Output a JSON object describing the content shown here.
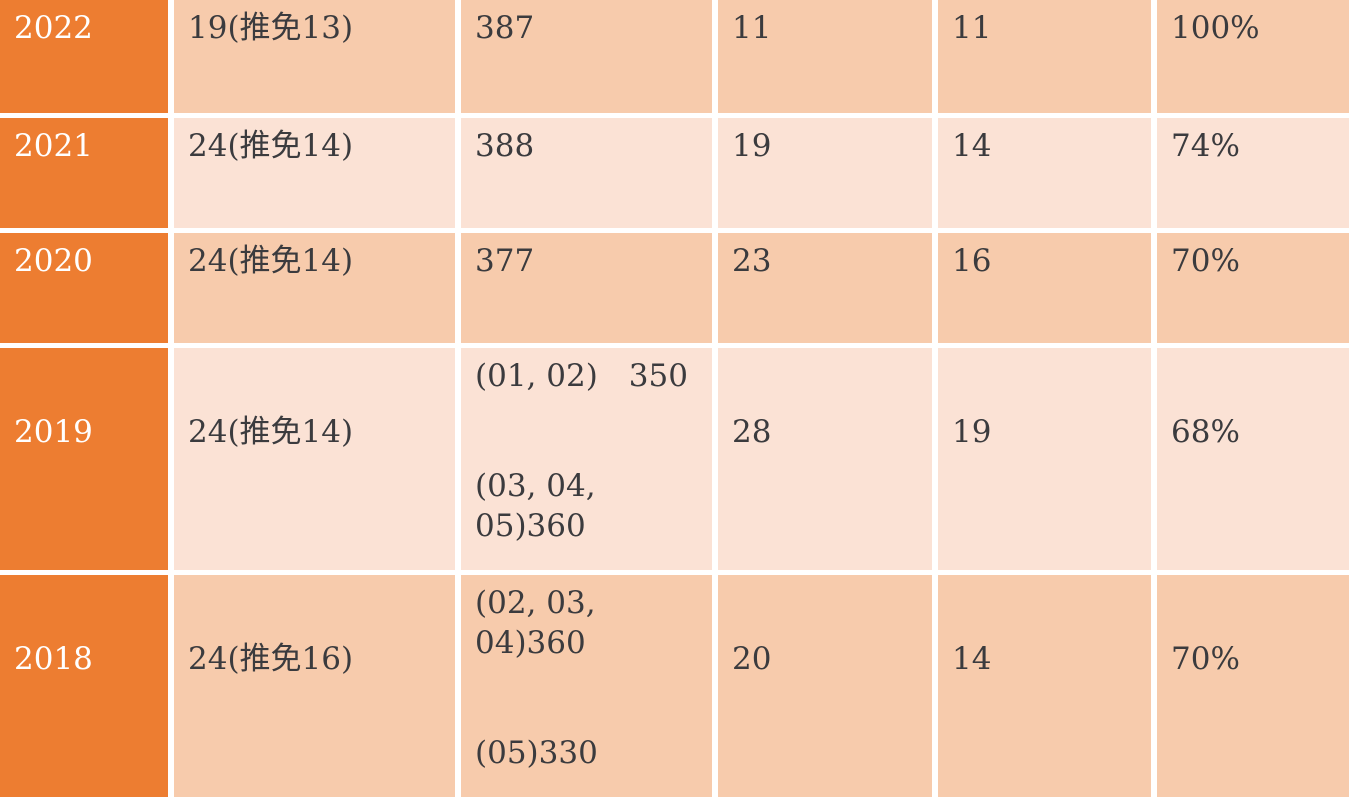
{
  "chart_data": {
    "type": "table",
    "header_visible": false,
    "rows": [
      [
        "2022",
        "19(推免13)",
        "387",
        "11",
        "11",
        "100%"
      ],
      [
        "2021",
        "24(推免14)",
        "388",
        "19",
        "14",
        "74%"
      ],
      [
        "2020",
        "24(推免14)",
        "377",
        "23",
        "16",
        "70%"
      ],
      [
        "2019",
        "24(推免14)",
        "(01, 02)　350 / (03, 04, 05)360",
        "28",
        "19",
        "68%"
      ],
      [
        "2018",
        "24(推免16)",
        "(02, 03, 04)360 / (05)330",
        "20",
        "14",
        "70%"
      ]
    ]
  },
  "colors": {
    "accent_orange": "#ed7d31",
    "band_dark": "#f7cbac",
    "band_light": "#fbe2d5",
    "grid_white": "#ffffff",
    "text": "#3b3b3e",
    "year_text": "#ffffff"
  },
  "table": {
    "rows": [
      {
        "year": "2022",
        "quota": "19(推免13)",
        "score": "387",
        "c4": "11",
        "c5": "11",
        "c6": "100%"
      },
      {
        "year": "2021",
        "quota": "24(推免14)",
        "score": "388",
        "c4": "19",
        "c5": "14",
        "c6": "74%"
      },
      {
        "year": "2020",
        "quota": "24(推免14)",
        "score": "377",
        "c4": "23",
        "c5": "16",
        "c6": "70%"
      },
      {
        "year": "2019",
        "quota": "24(推免14)",
        "score_lines": [
          "(01, 02)　350",
          "(03, 04, 05)360"
        ],
        "c4": "28",
        "c5": "19",
        "c6": "68%"
      },
      {
        "year": "2018",
        "quota": "24(推免16)",
        "score_lines": [
          "(02, 03, 04)360",
          "(05)330"
        ],
        "c4": "20",
        "c5": "14",
        "c6": "70%"
      }
    ]
  }
}
